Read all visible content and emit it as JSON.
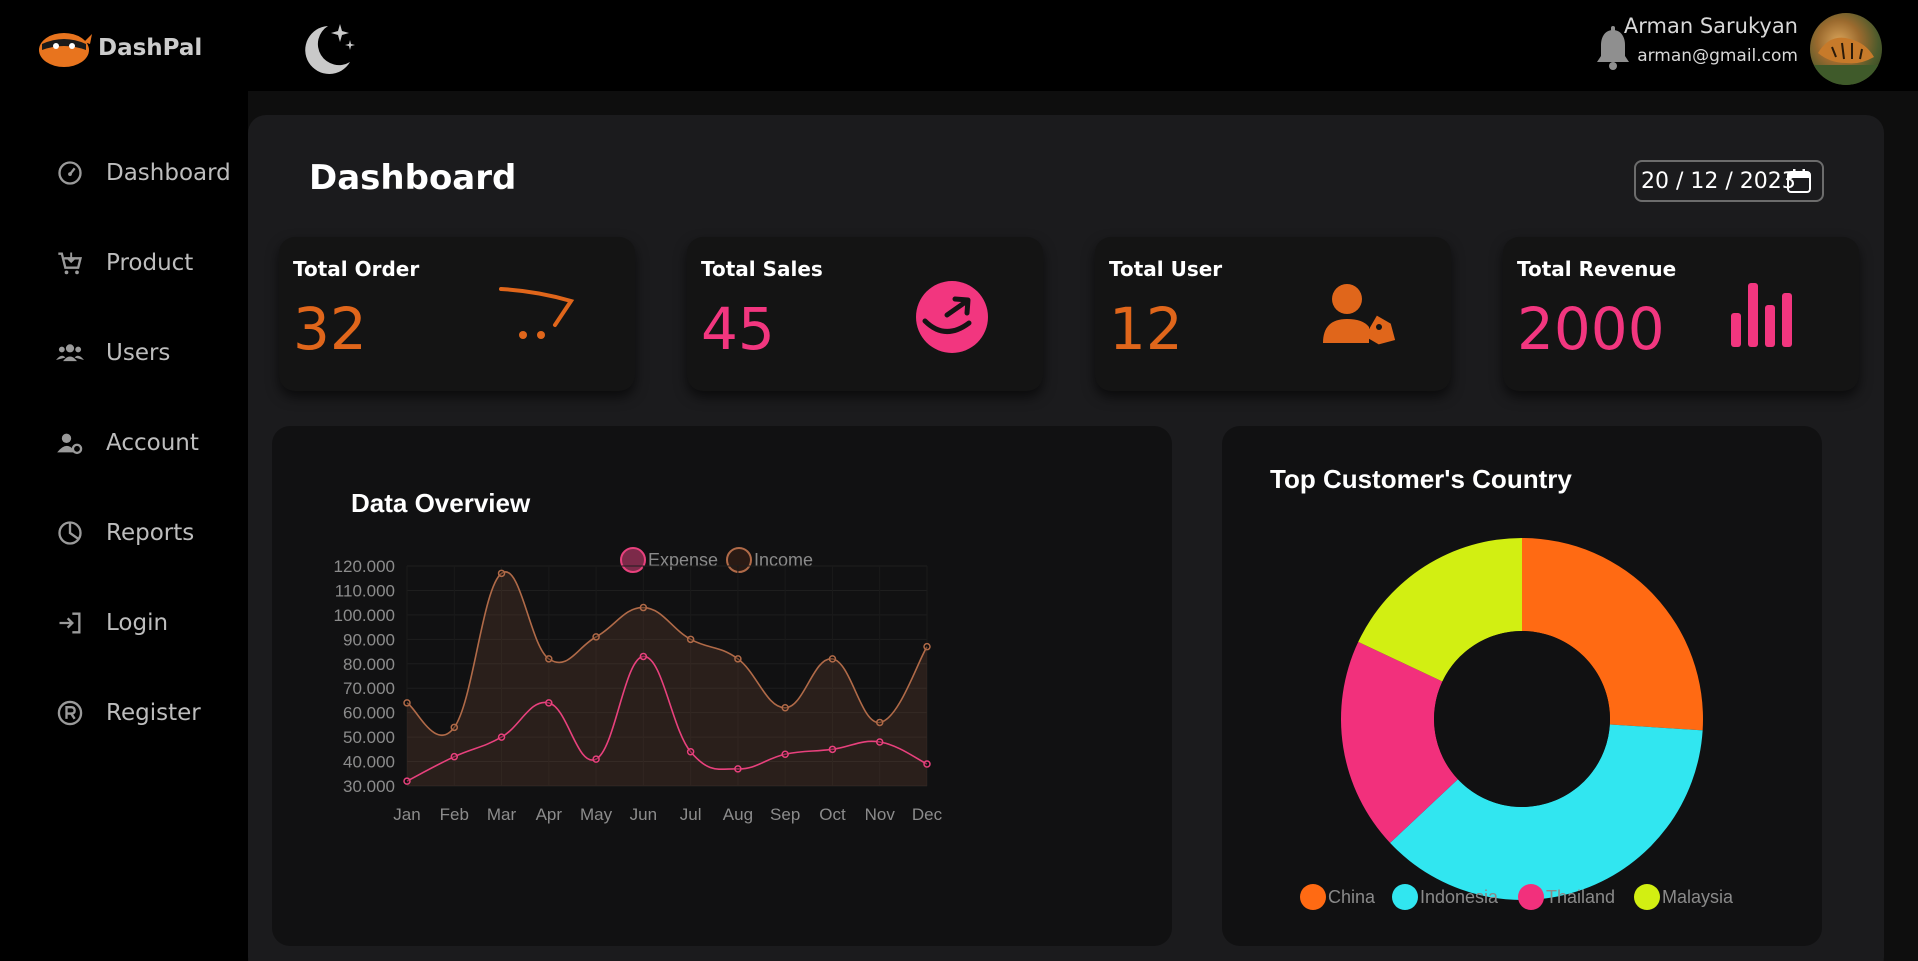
{
  "brand": {
    "name": "DashPal"
  },
  "user": {
    "name": "Arman Sarukyan",
    "email": "arman@gmail.com"
  },
  "sidebar": {
    "items": [
      {
        "label": "Dashboard",
        "icon": "gauge-icon"
      },
      {
        "label": "Product",
        "icon": "cart-icon"
      },
      {
        "label": "Users",
        "icon": "users-icon"
      },
      {
        "label": "Account",
        "icon": "user-cog-icon"
      },
      {
        "label": "Reports",
        "icon": "pie-chart-icon"
      },
      {
        "label": "Login",
        "icon": "login-icon"
      },
      {
        "label": "Register",
        "icon": "registered-icon"
      }
    ]
  },
  "page": {
    "title": "Dashboard",
    "date": "20 / 12 / 2023"
  },
  "cards": [
    {
      "title": "Total Order",
      "value": "32",
      "color": "#e0661b",
      "icon": "cart-swoosh-icon"
    },
    {
      "title": "Total Sales",
      "value": "45",
      "color": "#f2367f",
      "icon": "amazon-icon"
    },
    {
      "title": "Total User",
      "value": "12",
      "color": "#e0661b",
      "icon": "user-tag-icon"
    },
    {
      "title": "Total Revenue",
      "value": "2000",
      "color": "#f2367f",
      "icon": "bar-chart-icon"
    }
  ],
  "chart_data": [
    {
      "type": "line",
      "title": "Data Overview",
      "categories": [
        "Jan",
        "Feb",
        "Mar",
        "Apr",
        "May",
        "Jun",
        "Jul",
        "Aug",
        "Sep",
        "Oct",
        "Nov",
        "Dec"
      ],
      "y_ticks": [
        "120.000",
        "110.000",
        "100.000",
        "90.000",
        "80.000",
        "70.000",
        "60.000",
        "50.000",
        "40.000",
        "30.000"
      ],
      "ylim": [
        30000,
        120000
      ],
      "series": [
        {
          "name": "Expense",
          "color": "#e8417d",
          "values": [
            32000,
            42000,
            50000,
            64000,
            41000,
            83000,
            44000,
            37000,
            43000,
            45000,
            48000,
            39000
          ]
        },
        {
          "name": "Income",
          "color": "#b06a48",
          "values": [
            64000,
            54000,
            117000,
            82000,
            91000,
            103000,
            90000,
            82000,
            62000,
            82000,
            56000,
            87000
          ]
        }
      ],
      "legend_position": "top"
    },
    {
      "type": "pie",
      "title": "Top Customer's Country",
      "labels": [
        "China",
        "Indonesia",
        "Thailand",
        "Malaysia"
      ],
      "values": [
        26,
        37,
        19,
        18
      ],
      "colors": [
        "#ff6a13",
        "#31e6f0",
        "#f2307c",
        "#d2ef12"
      ],
      "legend_position": "bottom"
    }
  ]
}
